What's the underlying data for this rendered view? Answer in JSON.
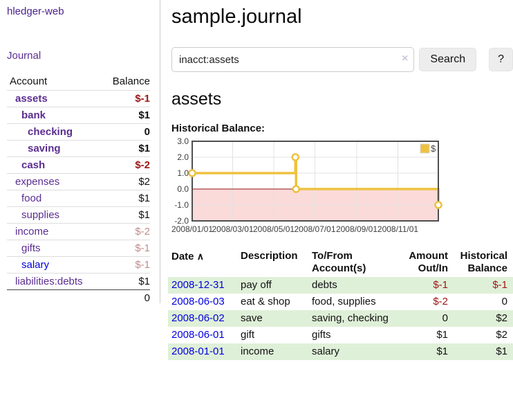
{
  "app": {
    "brand": "hledger-web"
  },
  "sidebar": {
    "journal_link": "Journal",
    "accounts_table": {
      "header_account": "Account",
      "header_balance": "Balance",
      "rows": [
        {
          "account": "assets",
          "balance": "$-1",
          "level": 1,
          "bold": true
        },
        {
          "account": "bank",
          "balance": "$1",
          "level": 2,
          "bold": true
        },
        {
          "account": "checking",
          "balance": "0",
          "level": 3,
          "bold": true
        },
        {
          "account": "saving",
          "balance": "$1",
          "level": 3,
          "bold": true
        },
        {
          "account": "cash",
          "balance": "$-2",
          "level": 2,
          "bold": true
        },
        {
          "account": "expenses",
          "balance": "$2",
          "level": 1,
          "bold": false
        },
        {
          "account": "food",
          "balance": "$1",
          "level": 2,
          "bold": false
        },
        {
          "account": "supplies",
          "balance": "$1",
          "level": 2,
          "bold": false
        },
        {
          "account": "income",
          "balance": "$-2",
          "level": 1,
          "bold": false
        },
        {
          "account": "gifts",
          "balance": "$-1",
          "level": 2,
          "bold": false
        },
        {
          "account": "salary",
          "balance": "$-1",
          "level": 2,
          "bold": false,
          "link_color": "blue"
        },
        {
          "account": "liabilities:debts",
          "balance": "$1",
          "level": 1,
          "bold": false
        }
      ],
      "total": "0"
    }
  },
  "main": {
    "title": "sample.journal",
    "search": {
      "value": "inacct:assets",
      "clear_label": "×",
      "search_button": "Search",
      "help_button": "?"
    },
    "account_heading": "assets",
    "section_label": "Historical Balance:"
  },
  "chart_data": {
    "type": "line",
    "step": true,
    "series": [
      {
        "name": "$",
        "color": "#edc240",
        "points": [
          [
            "2008-01-01",
            1
          ],
          [
            "2008-06-02",
            2
          ],
          [
            "2008-06-03",
            0
          ],
          [
            "2008-12-31",
            -1
          ]
        ]
      }
    ],
    "x_range": [
      "2008-01-01",
      "2008-12-31"
    ],
    "ylim": [
      -2,
      3
    ],
    "y_ticks": [
      "3.0",
      "2.0",
      "1.0",
      "0.0",
      "-1.0",
      "-2.0"
    ],
    "x_ticks": [
      "2008/01/01",
      "2008/03/01",
      "2008/05/01",
      "2008/07/01",
      "2008/09/01",
      "2008/11/01"
    ],
    "legend": {
      "label": "$",
      "position": "top-right"
    },
    "grid": true,
    "zero_line_color": "#8f1414",
    "negative_fill": "#fbdada",
    "grid_color": "#e2e2e2",
    "border_color": "#4f4f4f",
    "tick_color": "#3d3d3d"
  },
  "register": {
    "headers": [
      {
        "label": "Date",
        "sort": "asc"
      },
      {
        "label": "Description"
      },
      {
        "label": "To/From Account(s)"
      },
      {
        "label": "Amount Out/In"
      },
      {
        "label": "Historical Balance"
      }
    ],
    "sort_asc_icon": "∧",
    "rows": [
      {
        "date": "2008-12-31",
        "description": "pay off",
        "accounts": "debts",
        "amount": "$-1",
        "balance": "$-1"
      },
      {
        "date": "2008-06-03",
        "description": "eat & shop",
        "accounts": "food, supplies",
        "amount": "$-2",
        "balance": "0"
      },
      {
        "date": "2008-06-02",
        "description": "save",
        "accounts": "saving, checking",
        "amount": "0",
        "balance": "$2"
      },
      {
        "date": "2008-06-01",
        "description": "gift",
        "accounts": "gifts",
        "amount": "$1",
        "balance": "$2"
      },
      {
        "date": "2008-01-01",
        "description": "income",
        "accounts": "salary",
        "amount": "$1",
        "balance": "$1"
      }
    ]
  }
}
